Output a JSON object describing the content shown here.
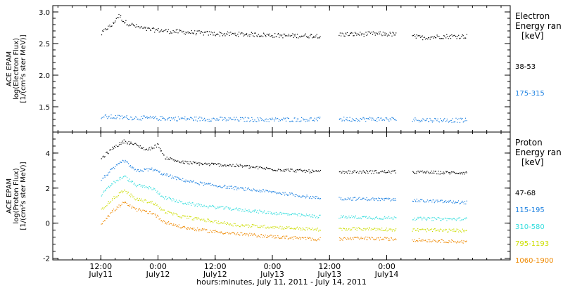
{
  "chart_data": [
    {
      "type": "scatter",
      "panel": "electron",
      "ylabel_lines": [
        "ACE EPAM",
        "log(Electron Flux)",
        "[1/(cm²s ster MeV)]"
      ],
      "ylim": [
        1.1,
        3.1
      ],
      "yticks": [
        1.5,
        2.0,
        2.5,
        3.0
      ],
      "ytick_labels": [
        "1.5",
        "2.0",
        "2.5",
        "3.0"
      ],
      "legend_title": [
        "Electron",
        "Energy ran",
        "[keV]"
      ],
      "series": [
        {
          "name": "38-53",
          "color": "#000000",
          "points": [
            [
              0.0,
              2.65
            ],
            [
              0.05,
              2.75
            ],
            [
              0.1,
              2.8
            ],
            [
              0.13,
              2.9
            ],
            [
              0.16,
              2.95
            ],
            [
              0.2,
              2.85
            ],
            [
              0.3,
              2.78
            ],
            [
              0.4,
              2.73
            ],
            [
              0.6,
              2.7
            ],
            [
              0.8,
              2.68
            ],
            [
              1.0,
              2.66
            ],
            [
              1.3,
              2.65
            ],
            [
              1.6,
              2.63
            ],
            [
              1.9,
              2.63
            ],
            [
              2.1,
              2.65
            ],
            [
              2.4,
              2.66
            ],
            [
              2.6,
              2.65
            ],
            [
              2.8,
              2.6
            ],
            [
              3.0,
              2.62
            ],
            [
              3.2,
              2.62
            ]
          ]
        },
        {
          "name": "175-315",
          "color": "#1a7fe0",
          "points": [
            [
              0.0,
              1.35
            ],
            [
              0.3,
              1.33
            ],
            [
              0.6,
              1.32
            ],
            [
              1.0,
              1.31
            ],
            [
              1.5,
              1.3
            ],
            [
              2.0,
              1.31
            ],
            [
              2.5,
              1.31
            ],
            [
              2.8,
              1.3
            ],
            [
              3.2,
              1.29
            ]
          ]
        }
      ],
      "gaps": [
        [
          1.92,
          2.08
        ],
        [
          2.58,
          2.72
        ]
      ]
    },
    {
      "type": "scatter",
      "panel": "proton",
      "ylabel_lines": [
        "ACE EPAM",
        "log(Proton Flux)",
        "[1/(cm²s ster MeV)]"
      ],
      "ylim": [
        -2.1,
        5.2
      ],
      "yticks": [
        -2,
        0,
        2,
        4
      ],
      "ytick_labels": [
        "-2",
        "0",
        "2",
        "4"
      ],
      "legend_title": [
        "Proton",
        "Energy ran",
        "[keV]"
      ],
      "series": [
        {
          "name": "47-68",
          "color": "#000000",
          "points": [
            [
              0.0,
              3.7
            ],
            [
              0.1,
              4.3
            ],
            [
              0.2,
              4.7
            ],
            [
              0.3,
              4.5
            ],
            [
              0.4,
              4.2
            ],
            [
              0.5,
              4.5
            ],
            [
              0.55,
              3.8
            ],
            [
              0.7,
              3.5
            ],
            [
              0.9,
              3.4
            ],
            [
              1.2,
              3.3
            ],
            [
              1.5,
              3.1
            ],
            [
              1.9,
              2.95
            ],
            [
              2.3,
              2.95
            ],
            [
              2.6,
              2.95
            ],
            [
              3.0,
              2.9
            ],
            [
              3.2,
              2.9
            ]
          ]
        },
        {
          "name": "115-195",
          "color": "#1a7fe0",
          "points": [
            [
              0.0,
              2.5
            ],
            [
              0.1,
              3.1
            ],
            [
              0.2,
              3.6
            ],
            [
              0.3,
              3.0
            ],
            [
              0.45,
              3.1
            ],
            [
              0.55,
              2.8
            ],
            [
              0.7,
              2.5
            ],
            [
              0.9,
              2.25
            ],
            [
              1.2,
              2.0
            ],
            [
              1.5,
              1.8
            ],
            [
              1.9,
              1.45
            ],
            [
              2.3,
              1.4
            ],
            [
              2.6,
              1.35
            ],
            [
              3.0,
              1.25
            ],
            [
              3.2,
              1.2
            ]
          ]
        },
        {
          "name": "310-580",
          "color": "#33dddd",
          "points": [
            [
              0.0,
              1.6
            ],
            [
              0.1,
              2.3
            ],
            [
              0.2,
              2.7
            ],
            [
              0.3,
              2.2
            ],
            [
              0.45,
              2.0
            ],
            [
              0.55,
              1.5
            ],
            [
              0.7,
              1.2
            ],
            [
              0.9,
              1.0
            ],
            [
              1.2,
              0.8
            ],
            [
              1.5,
              0.6
            ],
            [
              1.9,
              0.4
            ],
            [
              2.3,
              0.35
            ],
            [
              2.6,
              0.3
            ],
            [
              3.0,
              0.25
            ],
            [
              3.2,
              0.25
            ]
          ]
        },
        {
          "name": "795-1193",
          "color": "#ccdd00",
          "points": [
            [
              0.0,
              0.8
            ],
            [
              0.1,
              1.4
            ],
            [
              0.2,
              1.9
            ],
            [
              0.3,
              1.4
            ],
            [
              0.45,
              1.2
            ],
            [
              0.55,
              0.7
            ],
            [
              0.7,
              0.4
            ],
            [
              0.9,
              0.2
            ],
            [
              1.2,
              -0.1
            ],
            [
              1.5,
              -0.2
            ],
            [
              1.9,
              -0.35
            ],
            [
              2.3,
              -0.3
            ],
            [
              2.6,
              -0.35
            ],
            [
              3.0,
              -0.4
            ],
            [
              3.2,
              -0.4
            ]
          ]
        },
        {
          "name": "1060-1900",
          "color": "#ee8800",
          "points": [
            [
              0.0,
              0.0
            ],
            [
              0.1,
              0.7
            ],
            [
              0.2,
              1.2
            ],
            [
              0.3,
              0.8
            ],
            [
              0.45,
              0.6
            ],
            [
              0.55,
              0.1
            ],
            [
              0.7,
              -0.2
            ],
            [
              0.9,
              -0.4
            ],
            [
              1.2,
              -0.6
            ],
            [
              1.5,
              -0.75
            ],
            [
              1.9,
              -0.9
            ],
            [
              2.3,
              -0.85
            ],
            [
              2.6,
              -0.9
            ],
            [
              3.0,
              -1.0
            ],
            [
              3.2,
              -1.05
            ]
          ]
        }
      ],
      "gaps": [
        [
          1.92,
          2.08
        ],
        [
          2.58,
          2.72
        ]
      ]
    }
  ],
  "x_axis": {
    "range_days": [
      -0.42,
      3.58
    ],
    "ticks": [
      {
        "day": 0.0,
        "time": "12:00",
        "date": "July11"
      },
      {
        "day": 0.5,
        "time": "0:00",
        "date": "July12"
      },
      {
        "day": 1.0,
        "time": "12:00",
        "date": "July12"
      },
      {
        "day": 1.5,
        "time": "0:00",
        "date": "July13"
      },
      {
        "day": 2.0,
        "time": "12:00",
        "date": "July13"
      },
      {
        "day": 2.5,
        "time": "0:00",
        "date": "July14"
      }
    ],
    "xlabel": "hours:minutes, July 11, 2011 - July 14, 2011"
  }
}
